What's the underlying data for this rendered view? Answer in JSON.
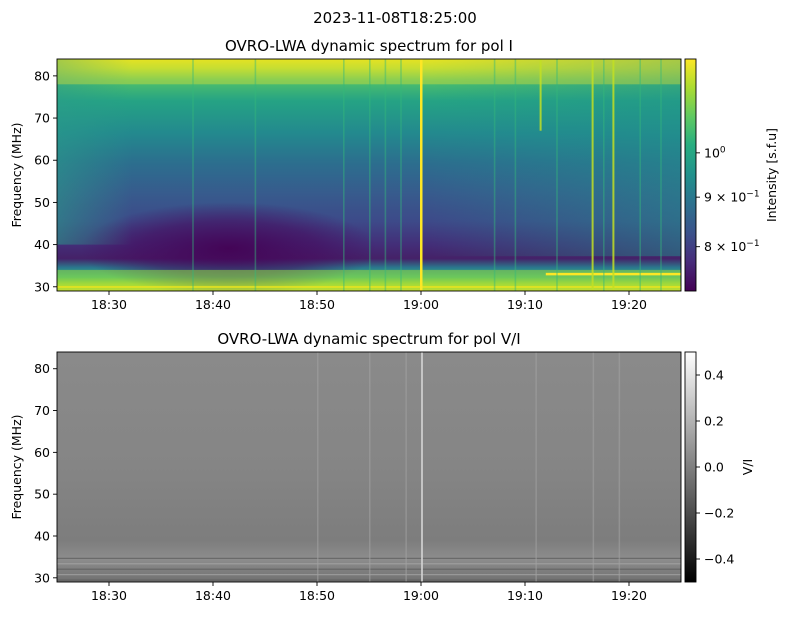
{
  "figure": {
    "suptitle": "2023-11-08T18:25:00"
  },
  "chart_data": [
    {
      "type": "heatmap",
      "title": "OVRO-LWA dynamic spectrum for pol I",
      "xlabel": "",
      "ylabel": "Frequency (MHz)",
      "x_ticks": [
        "18:30",
        "18:40",
        "18:50",
        "19:00",
        "19:10",
        "19:20"
      ],
      "x_tick_minutes": [
        5,
        15,
        25,
        35,
        45,
        55
      ],
      "x_range_minutes": [
        0,
        60
      ],
      "x_start_time": "18:25",
      "y_ticks": [
        30,
        40,
        50,
        60,
        70,
        80
      ],
      "ylim": [
        29,
        84
      ],
      "colormap": "viridis",
      "colorbar": {
        "label": "Intensity [s.f.u]",
        "scale": "log",
        "ticks": [
          {
            "value": 1.0,
            "label": "10^0",
            "mant": "",
            "exp": "0"
          },
          {
            "value": 0.9,
            "label": "9×10^-1",
            "mant": "9 × ",
            "exp": "−1"
          },
          {
            "value": 0.8,
            "label": "8×10^-1",
            "mant": "8 × ",
            "exp": "−1"
          }
        ],
        "range": [
          0.72,
          1.25
        ]
      },
      "features": {
        "bright_vertical_bursts_minutes": [
          35,
          46.5,
          51.5,
          53.5
        ],
        "faint_vertical_lines_minutes": [
          13,
          19,
          27.5,
          30,
          31.5,
          33,
          42,
          44,
          48,
          52.5,
          56,
          58
        ],
        "bright_horizontal_band_MHz": [
          29,
          34
        ],
        "high_frequency_bright_band_MHz": [
          78,
          84
        ],
        "dark_region": {
          "minutes": [
            5,
            28
          ],
          "MHz": [
            35,
            45
          ]
        }
      }
    },
    {
      "type": "heatmap",
      "title": "OVRO-LWA dynamic spectrum for pol V/I",
      "xlabel": "",
      "ylabel": "Frequency (MHz)",
      "x_ticks": [
        "18:30",
        "18:40",
        "18:50",
        "19:00",
        "19:10",
        "19:20"
      ],
      "x_tick_minutes": [
        5,
        15,
        25,
        35,
        45,
        55
      ],
      "x_range_minutes": [
        0,
        60
      ],
      "y_ticks": [
        30,
        40,
        50,
        60,
        70,
        80
      ],
      "ylim": [
        29,
        84
      ],
      "colormap": "gray",
      "colorbar": {
        "label": "V/I",
        "scale": "linear",
        "ticks": [
          {
            "value": 0.4,
            "label": "0.4"
          },
          {
            "value": 0.2,
            "label": "0.2"
          },
          {
            "value": 0.0,
            "label": "0.0"
          },
          {
            "value": -0.2,
            "label": "−0.2"
          },
          {
            "value": -0.4,
            "label": "−0.4"
          }
        ],
        "range": [
          -0.5,
          0.5
        ]
      },
      "features": {
        "typical_value": 0.0,
        "faint_vertical_lines_minutes": [
          25,
          30,
          33.5,
          35,
          46,
          51.5,
          54
        ],
        "low_frequency_banding_MHz": [
          29,
          36
        ]
      }
    }
  ]
}
